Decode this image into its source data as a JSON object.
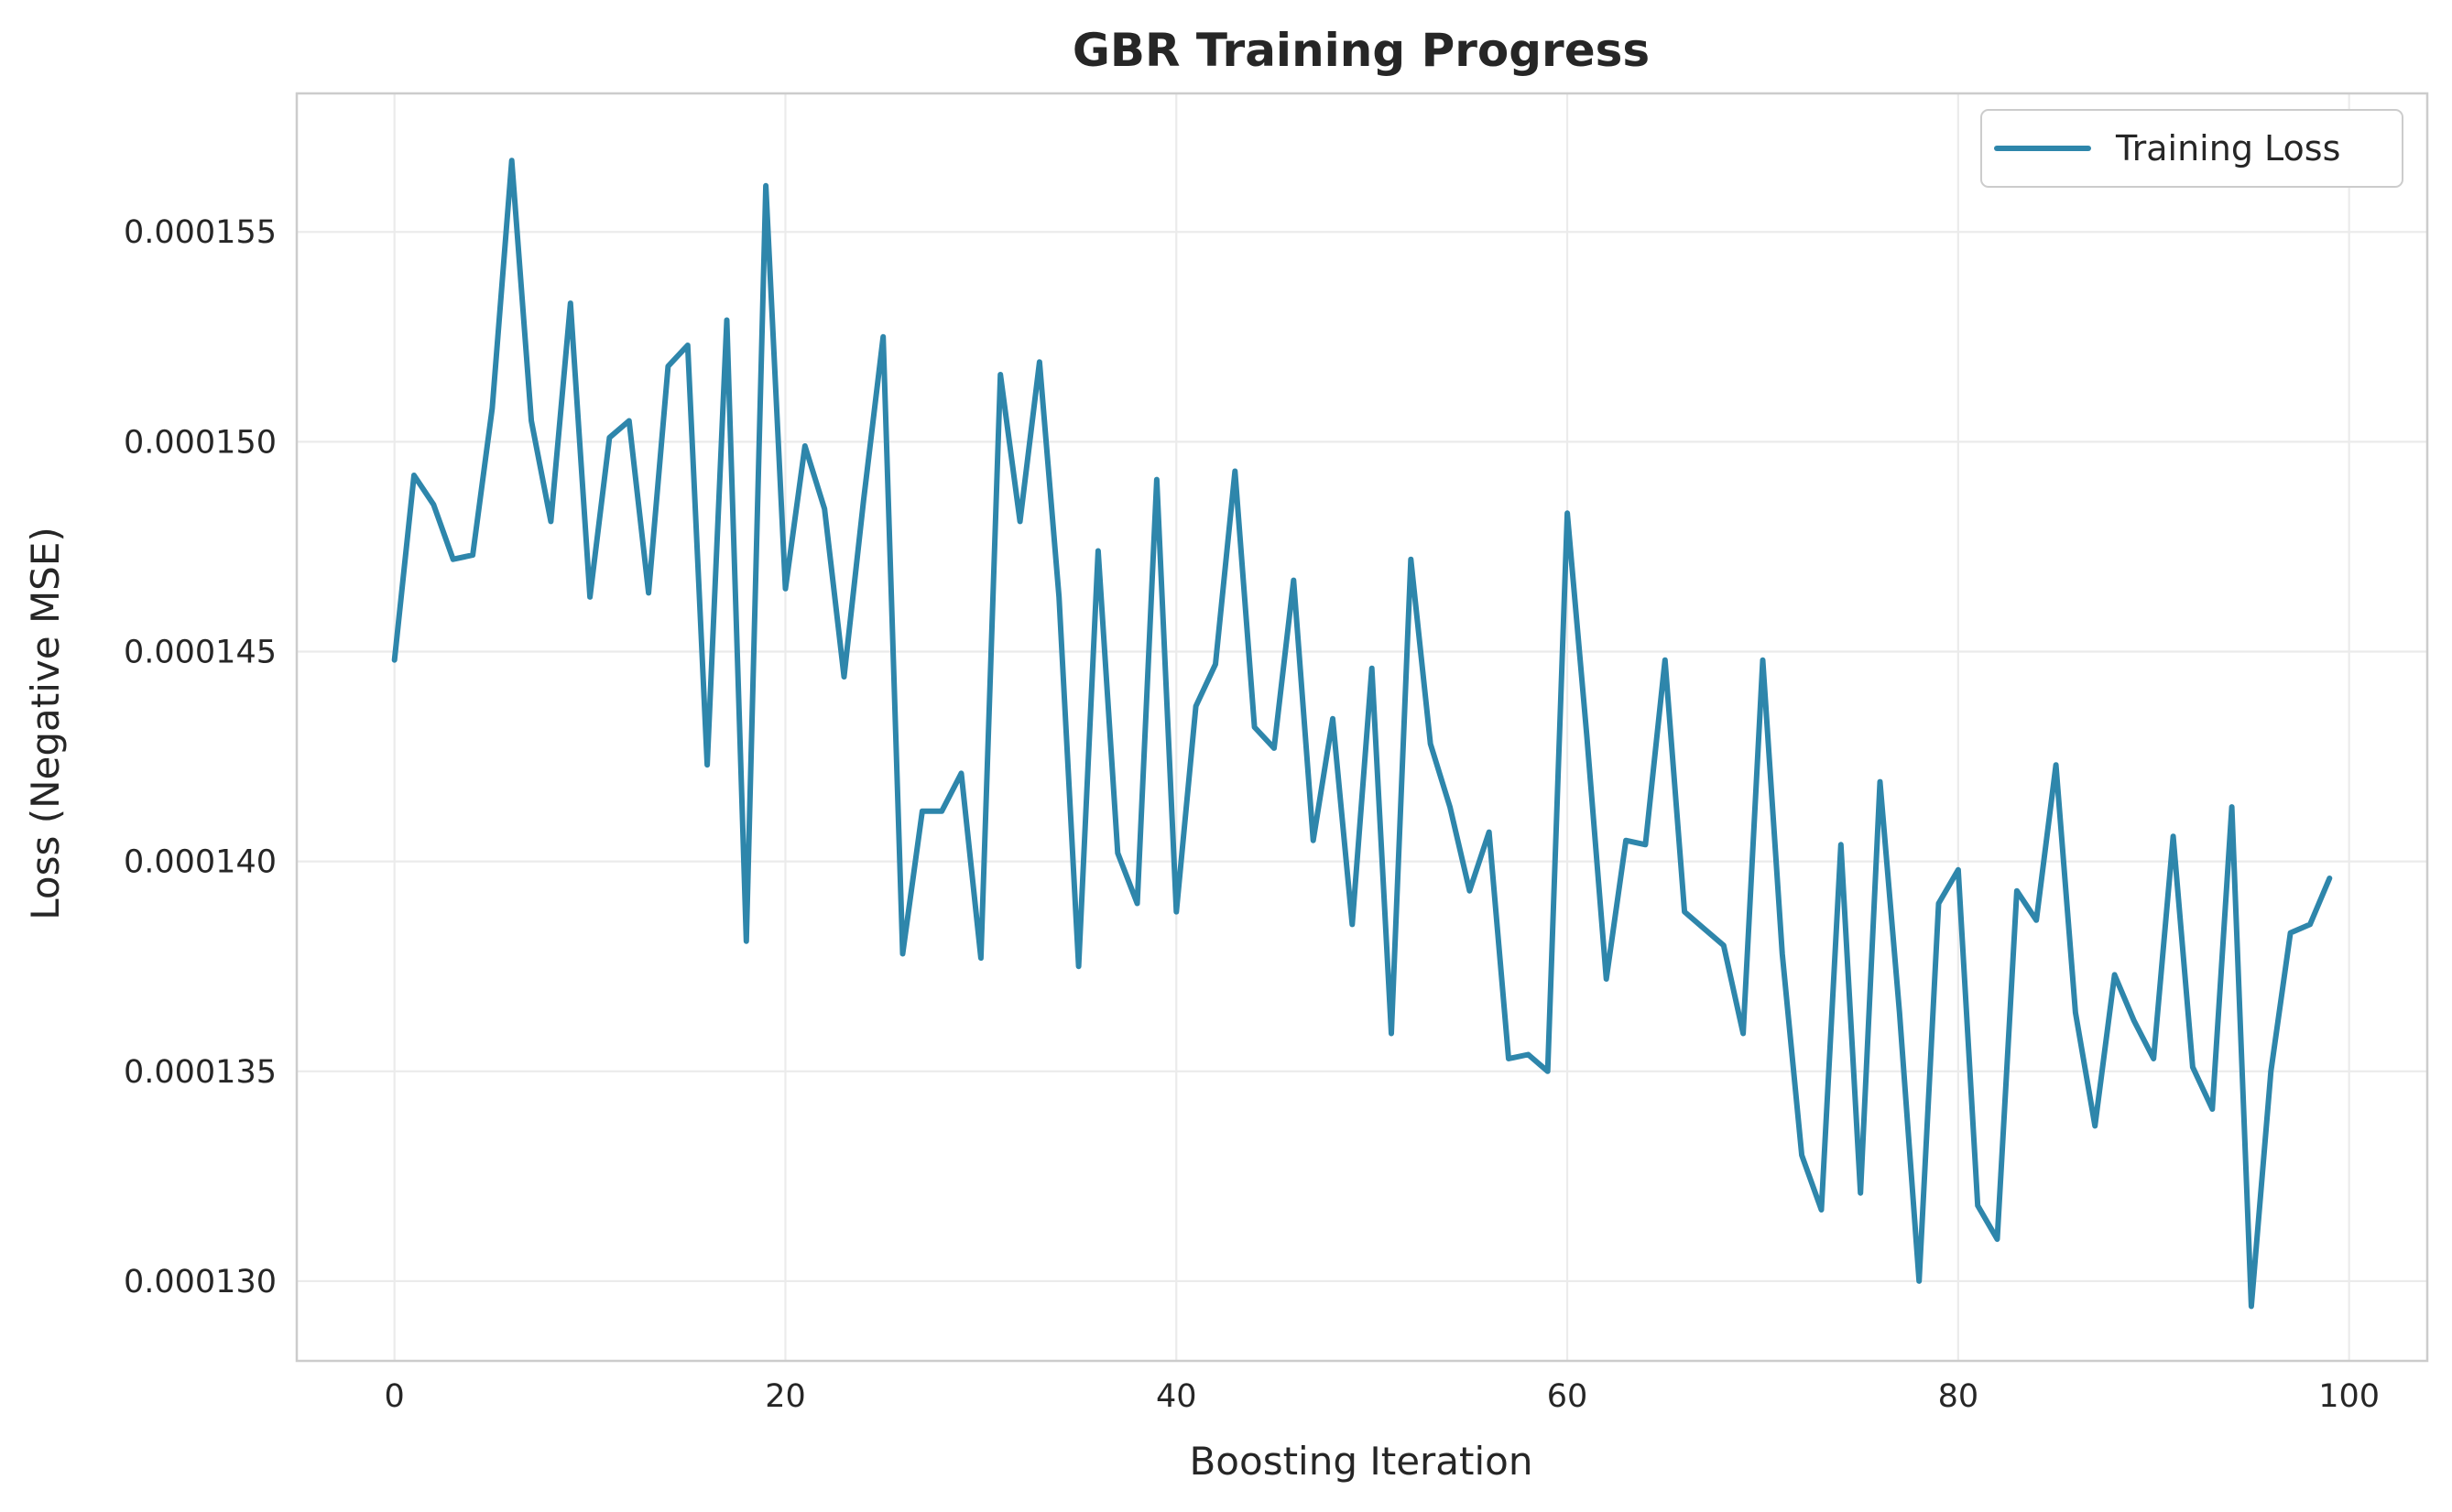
{
  "chart_data": {
    "type": "line",
    "title": "GBR Training Progress",
    "xlabel": "Boosting Iteration",
    "ylabel": "Loss (Negative MSE)",
    "xlim": [
      -5,
      104
    ],
    "ylim": [
      0.0001281,
      0.0001583
    ],
    "xticks": [
      0,
      20,
      40,
      60,
      80,
      100
    ],
    "yticks": [
      0.00013,
      0.000135,
      0.00014,
      0.000145,
      0.00015,
      0.000155
    ],
    "ytick_labels": [
      "0.000130",
      "0.000135",
      "0.000140",
      "0.000145",
      "0.000150",
      "0.000155"
    ],
    "grid": true,
    "legend_position": "top-right",
    "series": [
      {
        "name": "Training Loss",
        "color": "#2e86ab",
        "x": [
          0,
          1,
          2,
          3,
          4,
          5,
          6,
          7,
          8,
          9,
          10,
          11,
          12,
          13,
          14,
          15,
          16,
          17,
          18,
          19,
          20,
          21,
          22,
          23,
          24,
          25,
          26,
          27,
          28,
          29,
          30,
          31,
          32,
          33,
          34,
          35,
          36,
          37,
          38,
          39,
          40,
          41,
          42,
          43,
          44,
          45,
          46,
          47,
          48,
          49,
          50,
          51,
          52,
          53,
          54,
          55,
          56,
          57,
          58,
          59,
          60,
          61,
          62,
          63,
          64,
          65,
          66,
          67,
          68,
          69,
          70,
          71,
          72,
          73,
          74,
          75,
          76,
          77,
          78,
          79,
          80,
          81,
          82,
          83,
          84,
          85,
          86,
          87,
          88,
          89,
          90,
          91,
          92,
          93,
          94,
          95,
          96,
          97,
          98,
          99
        ],
        "values": [
          0.0001448,
          0.0001492,
          0.0001485,
          0.0001472,
          0.0001473,
          0.0001508,
          0.0001567,
          0.0001505,
          0.0001481,
          0.0001533,
          0.0001463,
          0.0001501,
          0.0001505,
          0.0001464,
          0.0001518,
          0.0001523,
          0.0001423,
          0.0001529,
          0.0001381,
          0.0001561,
          0.0001465,
          0.0001499,
          0.0001484,
          0.0001444,
          0.0001486,
          0.0001525,
          0.0001378,
          0.0001412,
          0.0001412,
          0.0001421,
          0.0001377,
          0.0001516,
          0.0001481,
          0.0001519,
          0.0001463,
          0.0001375,
          0.0001474,
          0.0001402,
          0.000139,
          0.0001491,
          0.0001388,
          0.0001437,
          0.0001447,
          0.0001493,
          0.0001432,
          0.0001427,
          0.0001467,
          0.0001405,
          0.0001434,
          0.0001385,
          0.0001446,
          0.0001359,
          0.0001472,
          0.0001428,
          0.0001413,
          0.0001393,
          0.0001407,
          0.0001353,
          0.0001354,
          0.000135,
          0.0001483,
          0.000143,
          0.0001372,
          0.0001405,
          0.0001404,
          0.0001448,
          0.0001388,
          0.0001384,
          0.000138,
          0.0001359,
          0.0001448,
          0.0001378,
          0.000133,
          0.0001317,
          0.0001404,
          0.0001321,
          0.0001419,
          0.0001364,
          0.00013,
          0.000139,
          0.0001398,
          0.0001318,
          0.000131,
          0.0001393,
          0.0001386,
          0.0001423,
          0.0001364,
          0.0001337,
          0.0001373,
          0.0001362,
          0.0001353,
          0.0001406,
          0.0001351,
          0.0001341,
          0.0001413,
          0.0001294,
          0.000135,
          0.0001383,
          0.0001385,
          0.0001396
        ]
      }
    ]
  }
}
